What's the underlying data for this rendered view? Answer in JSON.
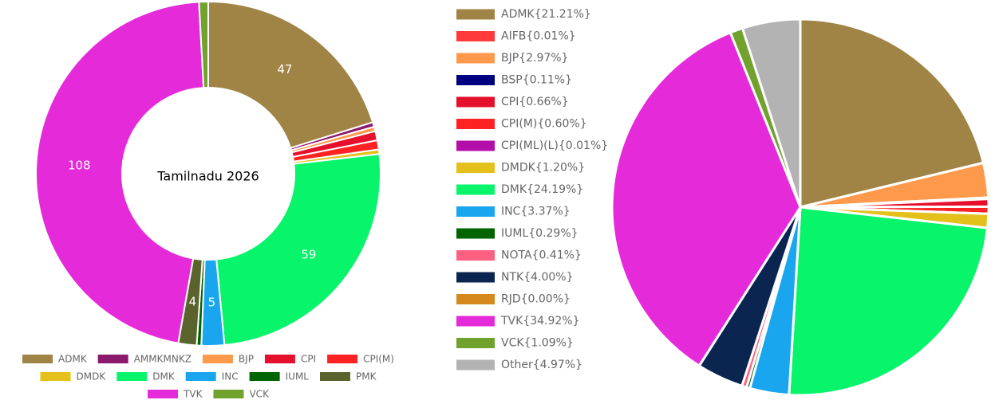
{
  "chart_data": [
    {
      "type": "donut",
      "center_text": "Tamilnadu 2026",
      "categories": [
        "ADMK",
        "AMMKMNKZ",
        "BJP",
        "CPI",
        "CPI(M)",
        "DMDK",
        "DMK",
        "INC",
        "IUML",
        "PMK",
        "TVK",
        "VCK"
      ],
      "values": [
        47,
        1,
        1,
        2,
        2,
        1,
        59,
        5,
        1,
        4,
        108,
        2
      ],
      "colors": [
        "#a08445",
        "#8b1a6e",
        "#ff9a4d",
        "#e5102b",
        "#ff2222",
        "#e3c01a",
        "#08f46a",
        "#1aa6ee",
        "#006400",
        "#59632b",
        "#e52bd9",
        "#71a22d"
      ],
      "legend": "bottom"
    },
    {
      "type": "pie",
      "categories": [
        "ADMK{21.21%}",
        "AIFB{0.01%}",
        "BJP{2.97%}",
        "BSP{0.11%}",
        "CPI{0.66%}",
        "CPI(M){0.60%}",
        "CPI(ML)(L){0.01%}",
        "DMDK{1.20%}",
        "DMK{24.19%}",
        "INC{3.37%}",
        "IUML{0.29%}",
        "NOTA{0.41%}",
        "NTK{4.00%}",
        "RJD{0.00%}",
        "TVK{34.92%}",
        "VCK{1.09%}",
        "Other{4.97%}"
      ],
      "values": [
        21.21,
        0.01,
        2.97,
        0.11,
        0.66,
        0.6,
        0.01,
        1.2,
        24.19,
        3.37,
        0.29,
        0.41,
        4.0,
        0.0,
        34.92,
        1.09,
        4.97
      ],
      "colors": [
        "#a08445",
        "#ff3a3a",
        "#ff9a4d",
        "#000080",
        "#e5102b",
        "#ff2222",
        "#b40ea8",
        "#e3c01a",
        "#08f46a",
        "#1aa6ee",
        "#006400",
        "#ff6080",
        "#0a2650",
        "#d4891a",
        "#e52bd9",
        "#71a22d",
        "#b3b3b3"
      ],
      "legend": "left"
    }
  ]
}
